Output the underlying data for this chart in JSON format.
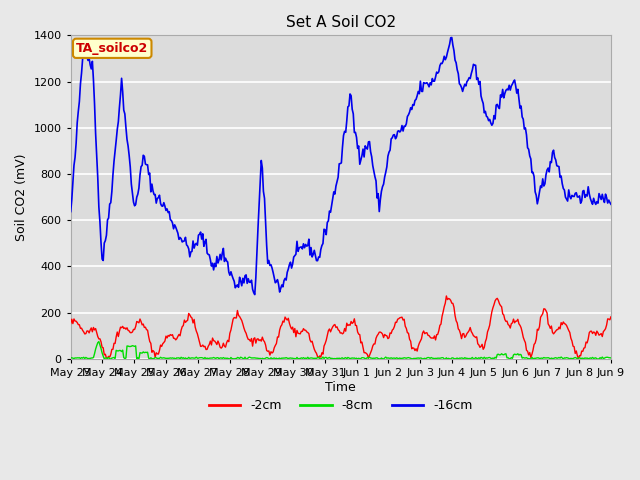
{
  "title": "Set A Soil CO2",
  "ylabel": "Soil CO2 (mV)",
  "xlabel": "Time",
  "annotation": "TA_soilco2",
  "annotation_bg": "#ffffcc",
  "annotation_border": "#cc8800",
  "annotation_text_color": "#cc0000",
  "ylim": [
    0,
    1400
  ],
  "xlim": [
    0,
    17
  ],
  "line_colors": {
    "red": "#ff0000",
    "green": "#00dd00",
    "blue": "#0000ee"
  },
  "legend_labels": [
    "-2cm",
    "-8cm",
    "-16cm"
  ],
  "xtick_labels": [
    "May 23",
    "May 24",
    "May 25",
    "May 26",
    "May 27",
    "May 28",
    "May 29",
    "May 30",
    "May 31",
    "Jun 1",
    "Jun 2",
    "Jun 3",
    "Jun 4",
    "Jun 5",
    "Jun 6",
    "Jun 7",
    "Jun 8",
    "Jun 9"
  ],
  "ytick_values": [
    0,
    200,
    400,
    600,
    800,
    1000,
    1200,
    1400
  ],
  "fig_bg": "#e8e8e8",
  "plot_bg": "#dcdcdc",
  "grid_color": "#ffffff",
  "title_fontsize": 11,
  "axis_label_fontsize": 9,
  "tick_fontsize": 8,
  "legend_fontsize": 9,
  "annotation_fontsize": 9,
  "linewidth_main": 1.2,
  "linewidth_small": 1.0
}
